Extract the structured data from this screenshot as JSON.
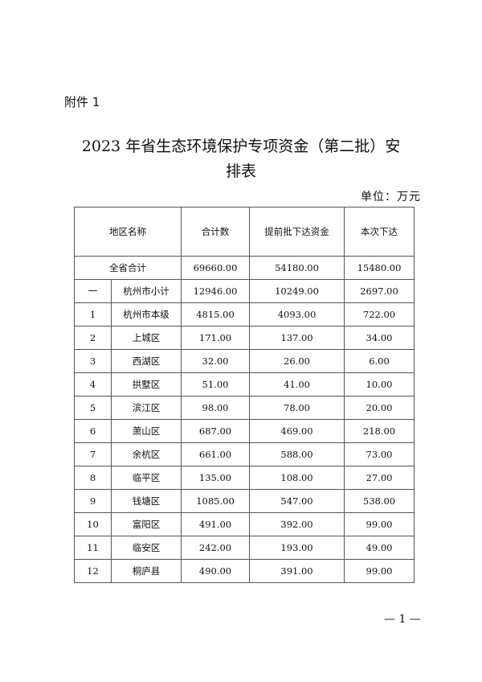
{
  "attachment_label": "附件 1",
  "title_line1": "2023 年省生态环境保护专项资金（第二批）安",
  "title_line2": "排表",
  "unit": "单位：万元",
  "table": {
    "headers": [
      "地区名称",
      "合计数",
      "提前批下达资金",
      "本次下达"
    ],
    "total": {
      "name": "全省合计",
      "sum": "69660.00",
      "advance": "54180.00",
      "current": "15480.00"
    },
    "rows": [
      {
        "no": "一",
        "name": "杭州市小计",
        "sum": "12946.00",
        "advance": "10249.00",
        "current": "2697.00"
      },
      {
        "no": "1",
        "name": "杭州市本级",
        "sum": "4815.00",
        "advance": "4093.00",
        "current": "722.00"
      },
      {
        "no": "2",
        "name": "上城区",
        "sum": "171.00",
        "advance": "137.00",
        "current": "34.00"
      },
      {
        "no": "3",
        "name": "西湖区",
        "sum": "32.00",
        "advance": "26.00",
        "current": "6.00"
      },
      {
        "no": "4",
        "name": "拱墅区",
        "sum": "51.00",
        "advance": "41.00",
        "current": "10.00"
      },
      {
        "no": "5",
        "name": "滨江区",
        "sum": "98.00",
        "advance": "78.00",
        "current": "20.00"
      },
      {
        "no": "6",
        "name": "萧山区",
        "sum": "687.00",
        "advance": "469.00",
        "current": "218.00"
      },
      {
        "no": "7",
        "name": "余杭区",
        "sum": "661.00",
        "advance": "588.00",
        "current": "73.00"
      },
      {
        "no": "8",
        "name": "临平区",
        "sum": "135.00",
        "advance": "108.00",
        "current": "27.00"
      },
      {
        "no": "9",
        "name": "钱塘区",
        "sum": "1085.00",
        "advance": "547.00",
        "current": "538.00"
      },
      {
        "no": "10",
        "name": "富阳区",
        "sum": "491.00",
        "advance": "392.00",
        "current": "99.00"
      },
      {
        "no": "11",
        "name": "临安区",
        "sum": "242.00",
        "advance": "193.00",
        "current": "49.00"
      },
      {
        "no": "12",
        "name": "桐庐县",
        "sum": "490.00",
        "advance": "391.00",
        "current": "99.00"
      }
    ]
  },
  "page_number": "— 1 —"
}
